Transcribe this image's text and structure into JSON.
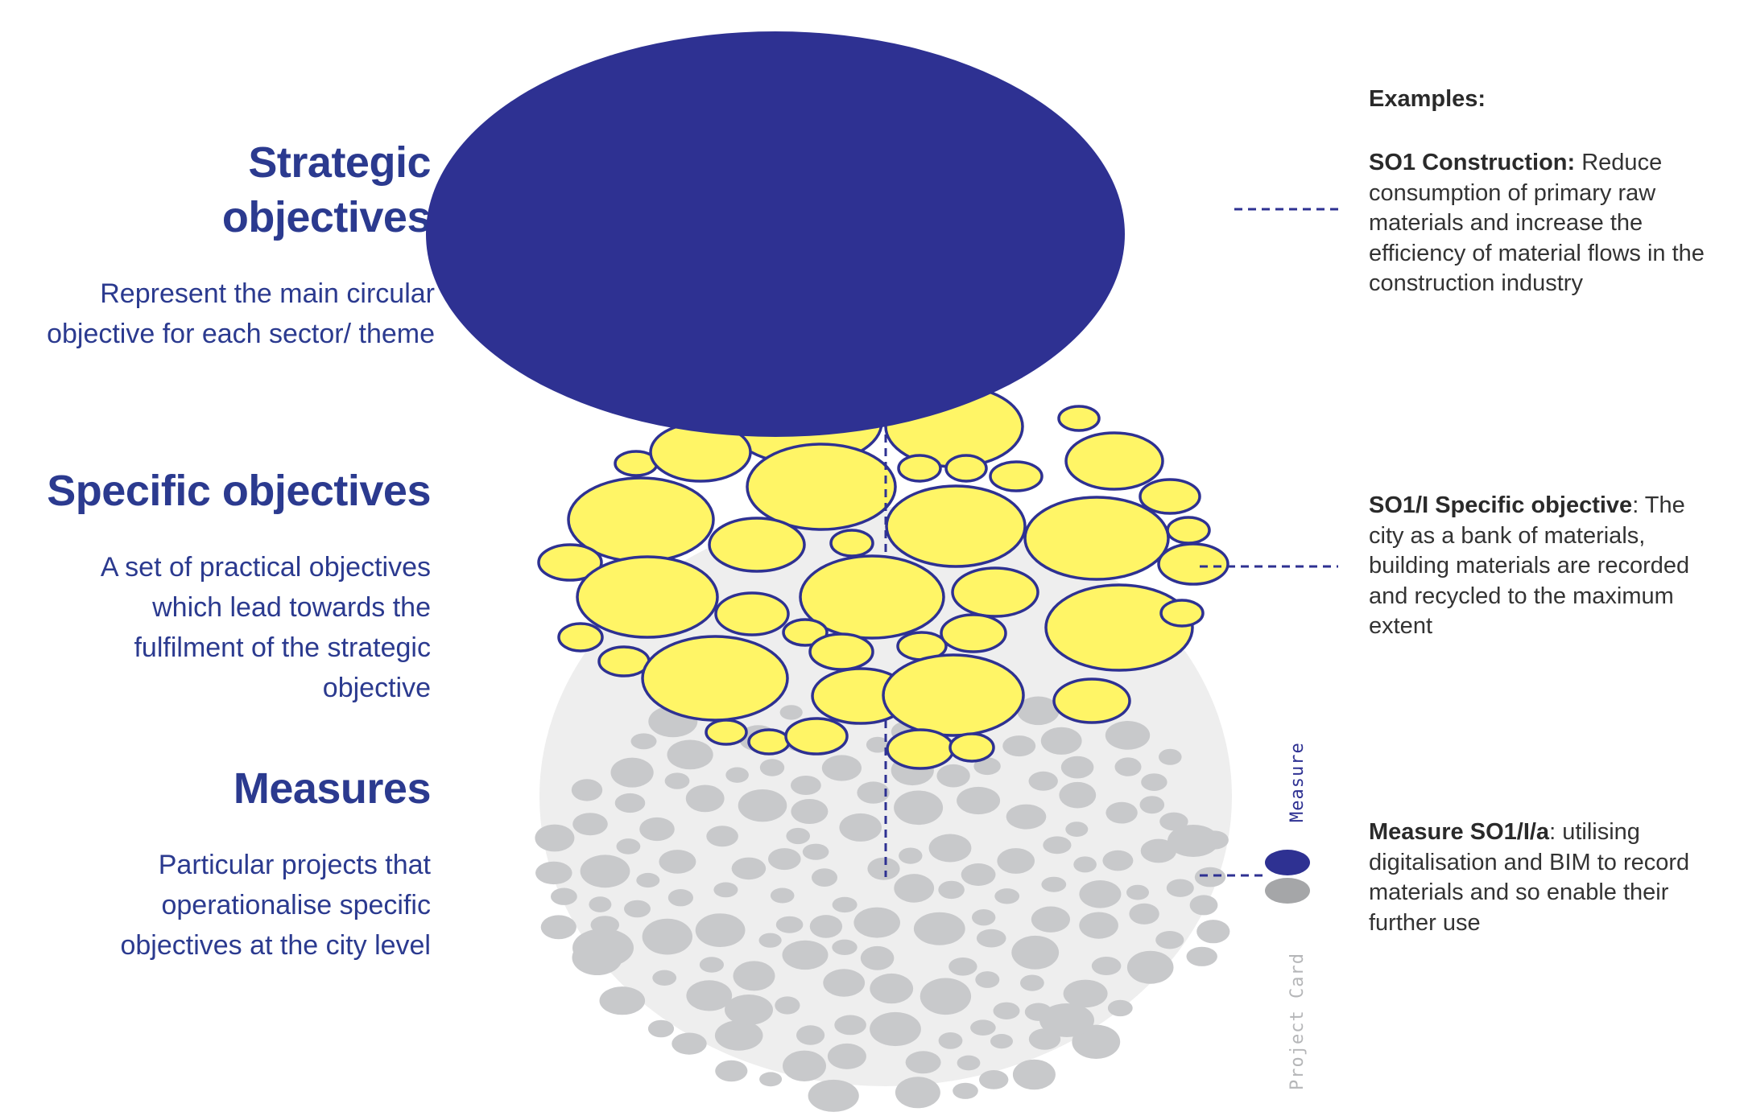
{
  "left": {
    "strategic": {
      "heading": "Strategic objectives",
      "description": "Represent the main circular objective for each sector/ theme"
    },
    "specific": {
      "heading": "Specific objectives",
      "description": "A set of practical objectives which lead towards the fulfilment of the strategic objective"
    },
    "measures": {
      "heading": "Measures",
      "description": "Particular projects that operationalise specific objectives at the city level"
    }
  },
  "right": {
    "examples_label": "Examples:",
    "so1": {
      "title": "SO1 Construction:",
      "text": "Reduce consumption of primary raw materials and increase the efficiency of material flows in the construction industry"
    },
    "so1i": {
      "title": "SO1/I Specific objective",
      "colon": ":",
      "text": "The city as a bank of materials, building materials are recorded and recycled to the maximum extent"
    },
    "measure": {
      "title": "Measure SO1/I/a",
      "colon": ":",
      "text": "utilising digitalisation and BIM to record materials and so enable their further use"
    }
  },
  "legend": {
    "measure_label": "Measure",
    "project_card_label": "Project Card"
  },
  "colors": {
    "navy": "#2e3192",
    "yellow": "#fff566",
    "gray": "#c8c9cb",
    "light_gray": "#ededed",
    "text_blue": "#2b3a8f"
  }
}
